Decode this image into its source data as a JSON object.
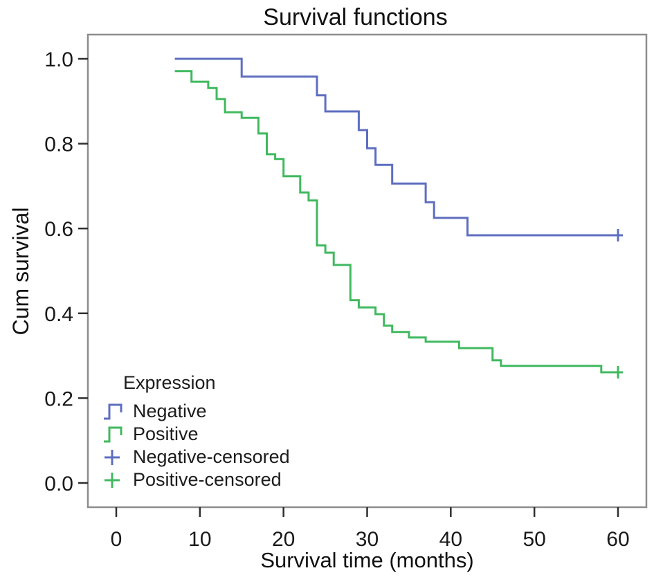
{
  "chart_data": {
    "type": "line",
    "variant": "kaplan_meier_step",
    "title": "Survival functions",
    "xlabel": "Survival time (months)",
    "ylabel": "Cum survival",
    "xlim": [
      0,
      60
    ],
    "ylim": [
      0.0,
      1.0
    ],
    "xticks": [
      0,
      10,
      20,
      30,
      40,
      50,
      60
    ],
    "yticks": [
      "0.0",
      "0.2",
      "0.4",
      "0.6",
      "0.8",
      "1.0"
    ],
    "grid": false,
    "legend_position": "inside-lower-left",
    "frame_color": "#8d8d8d",
    "tick_color": "#2e2e2e",
    "text_color": "#191919",
    "series": [
      {
        "name": "Negative",
        "color": "#5d6ec0",
        "points": [
          [
            7,
            1.0
          ],
          [
            15,
            0.958
          ],
          [
            24,
            0.914
          ],
          [
            25,
            0.876
          ],
          [
            29,
            0.832
          ],
          [
            30,
            0.789
          ],
          [
            31,
            0.75
          ],
          [
            33,
            0.706
          ],
          [
            37,
            0.662
          ],
          [
            38,
            0.625
          ],
          [
            42,
            0.584
          ],
          [
            60,
            0.584
          ]
        ],
        "censored": [
          [
            60,
            0.584
          ]
        ]
      },
      {
        "name": "Positive",
        "color": "#40b95f",
        "points": [
          [
            7,
            0.971
          ],
          [
            9,
            0.946
          ],
          [
            11,
            0.931
          ],
          [
            12,
            0.905
          ],
          [
            13,
            0.874
          ],
          [
            15,
            0.861
          ],
          [
            17,
            0.824
          ],
          [
            18,
            0.775
          ],
          [
            19,
            0.764
          ],
          [
            20,
            0.723
          ],
          [
            22,
            0.685
          ],
          [
            23,
            0.666
          ],
          [
            24,
            0.56
          ],
          [
            25,
            0.543
          ],
          [
            26,
            0.514
          ],
          [
            28,
            0.431
          ],
          [
            29,
            0.414
          ],
          [
            31,
            0.398
          ],
          [
            32,
            0.371
          ],
          [
            33,
            0.356
          ],
          [
            35,
            0.343
          ],
          [
            37,
            0.333
          ],
          [
            41,
            0.318
          ],
          [
            45,
            0.289
          ],
          [
            46,
            0.276
          ],
          [
            58,
            0.261
          ],
          [
            60,
            0.261
          ]
        ],
        "censored": [
          [
            60,
            0.261
          ]
        ]
      }
    ]
  },
  "legend": {
    "title": "Expression",
    "items": [
      {
        "label": "Negative",
        "glyph": "step",
        "color": "#5d6ec0"
      },
      {
        "label": "Positive",
        "glyph": "step",
        "color": "#40b95f"
      },
      {
        "label": "Negative-censored",
        "glyph": "plus",
        "color": "#5d6ec0"
      },
      {
        "label": "Positive-censored",
        "glyph": "plus",
        "color": "#40b95f"
      }
    ]
  }
}
